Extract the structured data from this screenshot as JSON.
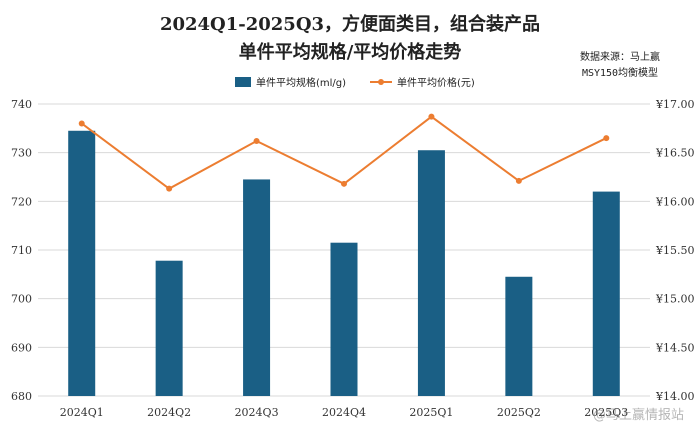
{
  "chart_data": {
    "type": "bar",
    "title": "2024Q1-2025Q3，方便面类目，组合装产品",
    "subtitle": "单件平均规格/平均价格走势",
    "source": [
      "数据来源：马上赢",
      "MSY150均衡模型"
    ],
    "categories": [
      "2024Q1",
      "2024Q2",
      "2024Q3",
      "2024Q4",
      "2025Q1",
      "2025Q2",
      "2025Q3"
    ],
    "series": [
      {
        "name": "单件平均规格(ml/g)",
        "type": "bar",
        "axis": "left",
        "color": "#1a5f85",
        "values": [
          734.5,
          707.8,
          724.5,
          711.5,
          730.5,
          704.5,
          722.0
        ]
      },
      {
        "name": "单件平均价格(元)",
        "type": "line",
        "axis": "right",
        "color": "#ec7d31",
        "values": [
          16.8,
          16.13,
          16.62,
          16.18,
          16.87,
          16.21,
          16.65
        ]
      }
    ],
    "ylim_left": [
      680,
      740
    ],
    "yticks_left": [
      "680",
      "690",
      "700",
      "710",
      "720",
      "730",
      "740"
    ],
    "ylim_right": [
      14.0,
      17.0
    ],
    "yticks_right": [
      "¥14.00",
      "¥14.50",
      "¥15.00",
      "¥15.50",
      "¥16.00",
      "¥16.50",
      "¥17.00"
    ],
    "legend": "top-center",
    "grid": true
  },
  "watermark": "@马上赢情报站"
}
